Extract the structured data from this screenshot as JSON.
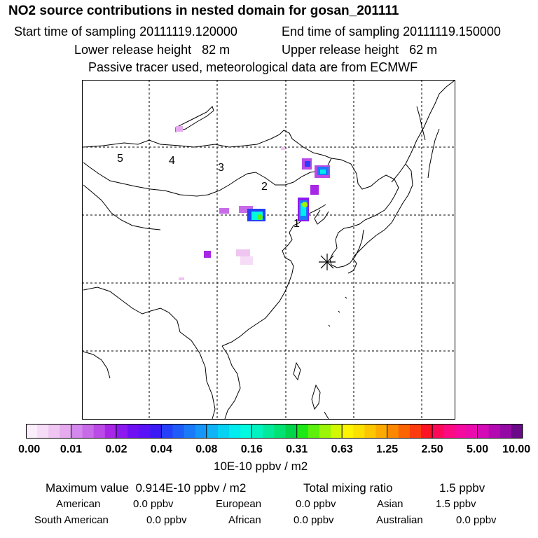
{
  "header": {
    "title": "NO2 source contributions in nested domain for gosan_201111",
    "start_time": "Start time of sampling 20111119.120000",
    "end_time": "End time of sampling 20111119.150000",
    "lower_height": "Lower release height   82 m",
    "upper_height": "Upper release height   62 m",
    "note": "Passive tracer used, meteorological data are from ECMWF"
  },
  "map": {
    "region_labels": [
      "1",
      "2",
      "3",
      "4",
      "5"
    ],
    "receptor_marker": "asterisk-icon"
  },
  "colorbar": {
    "tick_labels": [
      "0.00",
      "0.01",
      "0.02",
      "0.04",
      "0.08",
      "0.16",
      "0.31",
      "0.63",
      "1.25",
      "2.50",
      "5.00",
      "10.00"
    ],
    "units": "10E-10 ppbv / m2",
    "colors": [
      "#fbeefb",
      "#f6dcf6",
      "#efc5f1",
      "#e6aaef",
      "#d487ec",
      "#c86be8",
      "#bb4ae6",
      "#a826e6",
      "#8c1af0",
      "#6f10f4",
      "#5a12f6",
      "#3b1af6",
      "#2540f8",
      "#1f5cf8",
      "#1a7af8",
      "#1596f8",
      "#10b4f6",
      "#06d2f2",
      "#00ecee",
      "#00fae0",
      "#00f2c0",
      "#00ea9a",
      "#00e272",
      "#00d44a",
      "#1ce816",
      "#5cf00c",
      "#9cf406",
      "#d2f802",
      "#fcf400",
      "#fce000",
      "#fcc600",
      "#fcaa00",
      "#fc8800",
      "#fc6400",
      "#fc3c10",
      "#fc1424",
      "#fc0a5a",
      "#fc0a82",
      "#f40a9e",
      "#ea0aae",
      "#d40ab6",
      "#b40ab2",
      "#940aa4",
      "#6a0a88"
    ]
  },
  "stats": {
    "max_value": "Maximum value  0.914E-10 ppbv / m2",
    "total_label": "Total mixing ratio",
    "total_value": "1.5 ppbv",
    "regions": [
      {
        "name": "American",
        "value": "0.0 ppbv"
      },
      {
        "name": "European",
        "value": "0.0 ppbv"
      },
      {
        "name": "Asian",
        "value": "1.5 ppbv"
      },
      {
        "name": "South American",
        "value": "0.0 ppbv"
      },
      {
        "name": "African",
        "value": "0.0 ppbv"
      },
      {
        "name": "Australian",
        "value": "0.0 ppbv"
      }
    ]
  }
}
